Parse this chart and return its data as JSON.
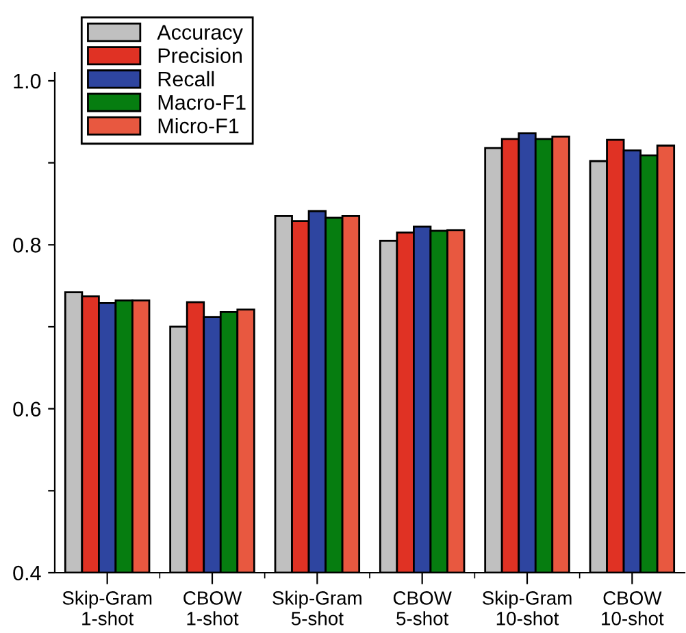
{
  "chart_data": {
    "type": "bar",
    "categories": [
      "Skip-Gram\n1-shot",
      "CBOW\n1-shot",
      "Skip-Gram\n5-shot",
      "CBOW\n5-shot",
      "Skip-Gram\n10-shot",
      "CBOW\n10-shot"
    ],
    "series": [
      {
        "name": "Accuracy",
        "color": "#c0c0c0",
        "values": [
          0.742,
          0.7,
          0.835,
          0.805,
          0.918,
          0.902
        ]
      },
      {
        "name": "Precision",
        "color": "#e03224",
        "values": [
          0.737,
          0.73,
          0.829,
          0.815,
          0.929,
          0.928
        ]
      },
      {
        "name": "Recall",
        "color": "#2e45a0",
        "values": [
          0.729,
          0.712,
          0.841,
          0.822,
          0.936,
          0.915
        ]
      },
      {
        "name": "Macro-F1",
        "color": "#067d10",
        "values": [
          0.732,
          0.718,
          0.833,
          0.817,
          0.929,
          0.909
        ]
      },
      {
        "name": "Micro-F1",
        "color": "#e85840",
        "values": [
          0.732,
          0.721,
          0.835,
          0.818,
          0.932,
          0.921
        ]
      }
    ],
    "ylim": [
      0.4,
      1.01
    ],
    "yticks": [
      0.4,
      {
        "value": 0.5,
        "label": null
      },
      0.6,
      {
        "value": 0.7,
        "label": null
      },
      0.8,
      {
        "value": 0.9,
        "label": null
      },
      {
        "value": 1.0,
        "label": "1.0"
      }
    ],
    "grid": false,
    "legend": "top left"
  }
}
